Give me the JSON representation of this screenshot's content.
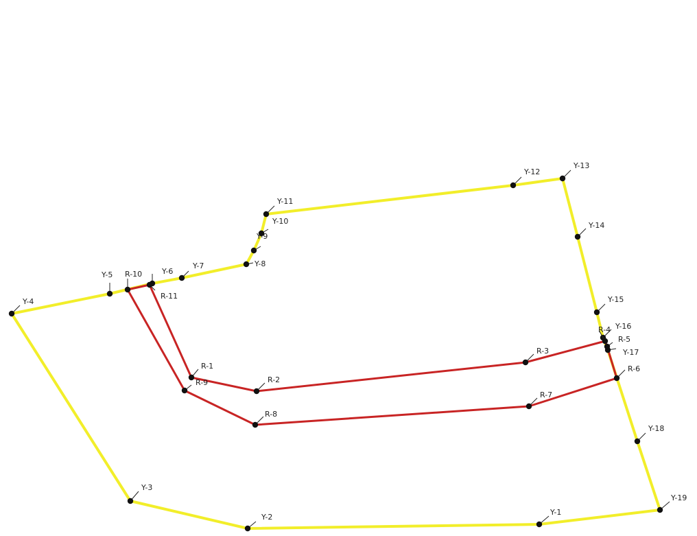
{
  "diagram": {
    "colors": {
      "yellow": "#f2ee2a",
      "red": "#c82424",
      "point": "#111111",
      "label": "#222222"
    },
    "points": [
      {
        "id": "Y-1",
        "label": "Y-1"
      },
      {
        "id": "Y-2",
        "label": "Y-2"
      },
      {
        "id": "Y-3",
        "label": "Y-3"
      },
      {
        "id": "Y-4",
        "label": "Y-4"
      },
      {
        "id": "Y-5",
        "label": "Y-5"
      },
      {
        "id": "Y-6",
        "label": "Y-6"
      },
      {
        "id": "Y-7",
        "label": "Y-7"
      },
      {
        "id": "Y-8",
        "label": "Y-8"
      },
      {
        "id": "Y-9",
        "label": "Y-9"
      },
      {
        "id": "Y-10",
        "label": "Y-10"
      },
      {
        "id": "Y-11",
        "label": "Y-11"
      },
      {
        "id": "Y-12",
        "label": "Y-12"
      },
      {
        "id": "Y-13",
        "label": "Y-13"
      },
      {
        "id": "Y-14",
        "label": "Y-14"
      },
      {
        "id": "Y-15",
        "label": "Y-15"
      },
      {
        "id": "Y-16",
        "label": "Y-16"
      },
      {
        "id": "Y-17",
        "label": "Y-17"
      },
      {
        "id": "Y-18",
        "label": "Y-18"
      },
      {
        "id": "Y-19",
        "label": "Y-19"
      },
      {
        "id": "R-1",
        "label": "R-1"
      },
      {
        "id": "R-2",
        "label": "R-2"
      },
      {
        "id": "R-3",
        "label": "R-3"
      },
      {
        "id": "R-4",
        "label": "R-4"
      },
      {
        "id": "R-5",
        "label": "R-5"
      },
      {
        "id": "R-6",
        "label": "R-6"
      },
      {
        "id": "R-7",
        "label": "R-7"
      },
      {
        "id": "R-8",
        "label": "R-8"
      },
      {
        "id": "R-9",
        "label": "R-9"
      },
      {
        "id": "R-10",
        "label": "R-10"
      },
      {
        "id": "R-11",
        "label": "R-11"
      }
    ],
    "yellow_boundary": [
      "Y-19",
      "Y-1",
      "Y-2",
      "Y-3",
      "Y-4",
      "Y-5",
      "Y-6",
      "Y-7",
      "Y-8",
      "Y-9",
      "Y-10",
      "Y-11",
      "Y-12",
      "Y-13",
      "Y-14",
      "Y-15",
      "Y-16",
      "Y-17",
      "Y-18",
      "Y-19"
    ],
    "red_boundary": [
      "R-10",
      "R-9",
      "R-8",
      "R-7",
      "R-6",
      "R-5",
      "R-4",
      "R-3",
      "R-2",
      "R-1",
      "R-11",
      "R-10"
    ]
  }
}
